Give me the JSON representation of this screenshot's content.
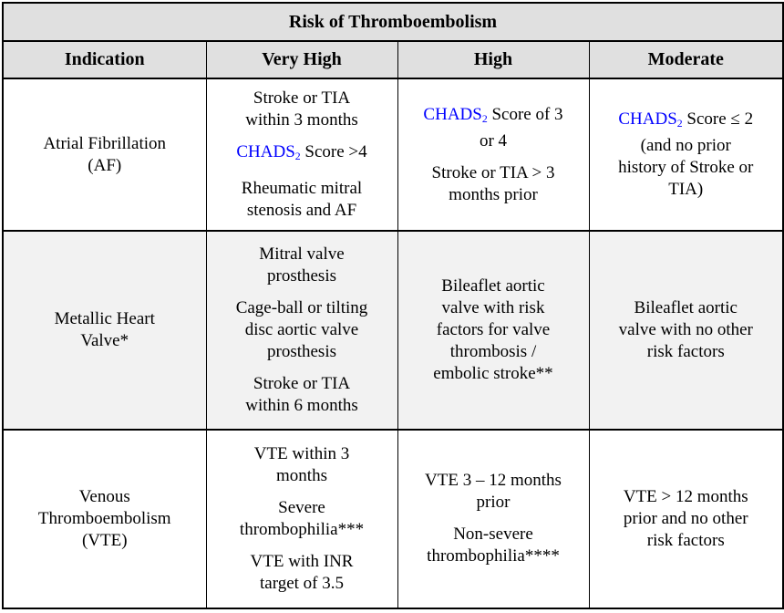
{
  "title": "Risk of Thromboembolism",
  "columns": [
    "Indication",
    "Very High",
    "High",
    "Moderate"
  ],
  "colors": {
    "chads_blue": "#0000ff",
    "header_bg": "#e0e0e0",
    "shaded_row_bg": "#f2f2f2",
    "border": "#000000",
    "page_bg": "#ffffff"
  },
  "rows": [
    {
      "indication": [
        [
          {
            "text": "Atrial Fibrillation\n(AF)"
          }
        ]
      ],
      "very_high": [
        [
          {
            "text": "Stroke or TIA\nwithin 3 months"
          }
        ],
        [
          {
            "text": "CHADS",
            "blue": true
          },
          {
            "text": "2",
            "blue": true,
            "sub": true
          },
          {
            "text": " Score >4"
          }
        ],
        [
          {
            "text": "Rheumatic mitral\nstenosis and AF"
          }
        ]
      ],
      "high": [
        [
          {
            "text": "CHADS",
            "blue": true
          },
          {
            "text": "2",
            "blue": true,
            "sub": true
          },
          {
            "text": " Score of 3\nor 4"
          }
        ],
        [
          {
            "text": "Stroke or TIA > 3\nmonths prior"
          }
        ]
      ],
      "moderate": [
        [
          {
            "text": "CHADS",
            "blue": true
          },
          {
            "text": "2",
            "blue": true,
            "sub": true
          },
          {
            "text": " Score ≤ 2\n(and no prior\nhistory of Stroke or\nTIA)"
          }
        ]
      ]
    },
    {
      "indication": [
        [
          {
            "text": "Metallic Heart\nValve*"
          }
        ]
      ],
      "very_high": [
        [
          {
            "text": "Mitral valve\nprosthesis"
          }
        ],
        [
          {
            "text": "Cage-ball or tilting\ndisc aortic valve\nprosthesis"
          }
        ],
        [
          {
            "text": "Stroke or TIA\nwithin 6 months"
          }
        ]
      ],
      "high": [
        [
          {
            "text": "Bileaflet aortic\nvalve with risk\nfactors for valve\nthrombosis /\nembolic stroke**"
          }
        ]
      ],
      "moderate": [
        [
          {
            "text": "Bileaflet aortic\nvalve with no other\nrisk factors"
          }
        ]
      ]
    },
    {
      "indication": [
        [
          {
            "text": "Venous\nThromboembolism\n(VTE)"
          }
        ]
      ],
      "very_high": [
        [
          {
            "text": "VTE within 3\nmonths"
          }
        ],
        [
          {
            "text": "Severe\nthrombophilia***"
          }
        ],
        [
          {
            "text": "VTE with INR\ntarget of 3.5"
          }
        ]
      ],
      "high": [
        [
          {
            "text": "VTE 3 – 12 months\nprior"
          }
        ],
        [
          {
            "text": "Non-severe\nthrombophilia****"
          }
        ]
      ],
      "moderate": [
        [
          {
            "text": "VTE > 12 months\nprior and no other\nrisk factors"
          }
        ]
      ]
    }
  ]
}
